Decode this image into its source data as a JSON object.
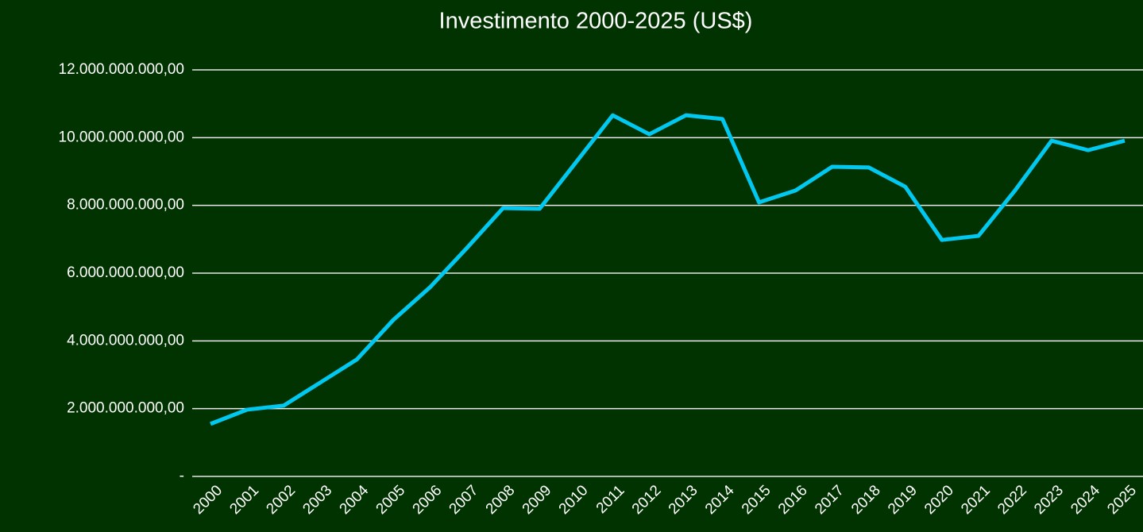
{
  "chart_data": {
    "type": "line",
    "title": "Investimento 2000-2025 (US$)",
    "categories": [
      "2000",
      "2001",
      "2002",
      "2003",
      "2004",
      "2005",
      "2006",
      "2007",
      "2008",
      "2009",
      "2010",
      "2011",
      "2012",
      "2013",
      "2014",
      "2015",
      "2016",
      "2017",
      "2018",
      "2019",
      "2020",
      "2021",
      "2022",
      "2023",
      "2024",
      "2025"
    ],
    "values": [
      1550000000,
      1970000000,
      2090000000,
      2770000000,
      3450000000,
      4620000000,
      5580000000,
      6730000000,
      7920000000,
      7900000000,
      9280000000,
      10660000000,
      10100000000,
      10660000000,
      10550000000,
      8090000000,
      8440000000,
      9140000000,
      9120000000,
      8550000000,
      6980000000,
      7100000000,
      8440000000,
      9910000000,
      9630000000,
      9910000000
    ],
    "color": "#00c8f0",
    "ylim": [
      0,
      12000000000
    ],
    "yticks": [
      {
        "value": 0,
        "label": "-"
      },
      {
        "value": 2000000000,
        "label": "2.000.000.000,00"
      },
      {
        "value": 4000000000,
        "label": "4.000.000.000,00"
      },
      {
        "value": 6000000000,
        "label": "6.000.000.000,00"
      },
      {
        "value": 8000000000,
        "label": "8.000.000.000,00"
      },
      {
        "value": 10000000000,
        "label": "10.000.000.000,00"
      },
      {
        "value": 12000000000,
        "label": "12.000.000.000,00"
      }
    ],
    "grid": true
  }
}
